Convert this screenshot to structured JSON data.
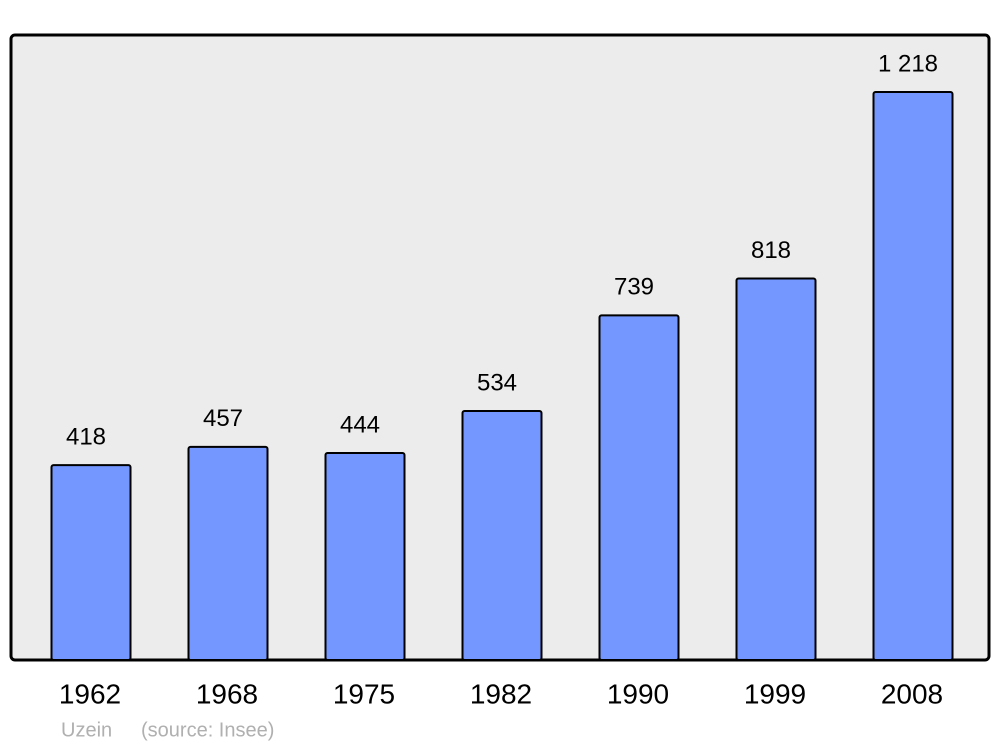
{
  "chart_data": {
    "type": "bar",
    "categories": [
      "1962",
      "1968",
      "1975",
      "1982",
      "1990",
      "1999",
      "2008"
    ],
    "values": [
      418,
      457,
      444,
      534,
      739,
      818,
      1218
    ],
    "value_labels": [
      "418",
      "457",
      "444",
      "534",
      "739",
      "818",
      "1 218"
    ],
    "color": "#7396ff",
    "subtitle": "Uzein",
    "source": "(source: Insee)"
  }
}
